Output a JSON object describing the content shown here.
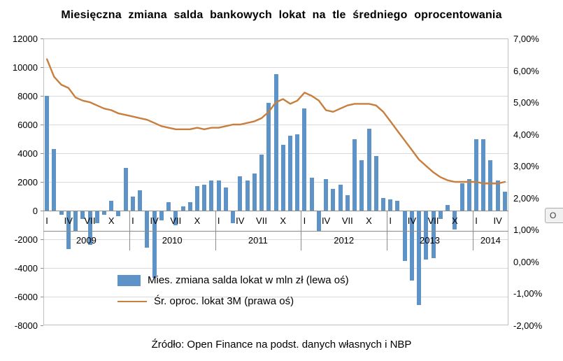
{
  "title": "Miesięczna zmiana salda bankowych lokat na tle średniego oprocentowania",
  "source": "Źródło: Open Finance na podst. danych własnych i NBP",
  "tooltip": "O",
  "legend": {
    "bars": "Mies. zmiana salda lokat w mln zł (lewa oś)",
    "line": "Śr. oproc. lokat 3M (prawa oś)"
  },
  "colors": {
    "bar": "#5d93c6",
    "line": "#c87e3d",
    "grid": "#d9d9d9",
    "axis": "#8c8c8c",
    "border": "#bfbfbf"
  },
  "chart_data": {
    "type": "bar+line combo",
    "title": "Miesięczna zmiana salda bankowych lokat na tle średniego oprocentowania",
    "x_unit": "month",
    "grid": "horizontal",
    "legend_position": "inside-bottom-left",
    "left_axis": {
      "min": -8000,
      "max": 12000,
      "ticks": [
        12000,
        10000,
        8000,
        6000,
        4000,
        2000,
        0,
        -2000,
        -4000,
        -6000,
        -8000
      ],
      "labels": [
        "12000",
        "10000",
        "8000",
        "6000",
        "4000",
        "2000",
        "0",
        "-2000",
        "-4000",
        "-6000",
        "-8000"
      ]
    },
    "right_axis": {
      "min": -2,
      "max": 7,
      "ticks": [
        7,
        6,
        5,
        4,
        3,
        2,
        1,
        0,
        -1,
        -2
      ],
      "labels": [
        "7,00%",
        "6,00%",
        "5,00%",
        "4,00%",
        "3,00%",
        "2,00%",
        "1,00%",
        "0,00%",
        "-1,00%",
        "-2,00%"
      ]
    },
    "month_ticks": [
      {
        "index": 0,
        "label": "I"
      },
      {
        "index": 3,
        "label": "IV"
      },
      {
        "index": 6,
        "label": "VII"
      },
      {
        "index": 9,
        "label": "X"
      },
      {
        "index": 12,
        "label": "I"
      },
      {
        "index": 15,
        "label": "IV"
      },
      {
        "index": 18,
        "label": "VII"
      },
      {
        "index": 21,
        "label": "X"
      },
      {
        "index": 24,
        "label": "I"
      },
      {
        "index": 27,
        "label": "IV"
      },
      {
        "index": 30,
        "label": "VII"
      },
      {
        "index": 33,
        "label": "X"
      },
      {
        "index": 36,
        "label": "I"
      },
      {
        "index": 39,
        "label": "IV"
      },
      {
        "index": 42,
        "label": "VII"
      },
      {
        "index": 45,
        "label": "X"
      },
      {
        "index": 48,
        "label": "I"
      },
      {
        "index": 51,
        "label": "IV"
      },
      {
        "index": 54,
        "label": "VII"
      },
      {
        "index": 57,
        "label": "X"
      },
      {
        "index": 60,
        "label": "I"
      },
      {
        "index": 63,
        "label": "IV"
      }
    ],
    "years": [
      {
        "label": "2009",
        "start": 0,
        "end": 12
      },
      {
        "label": "2010",
        "start": 12,
        "end": 24
      },
      {
        "label": "2011",
        "start": 24,
        "end": 36
      },
      {
        "label": "2012",
        "start": 36,
        "end": 48
      },
      {
        "label": "2013",
        "start": 48,
        "end": 60
      },
      {
        "label": "2014",
        "start": 60,
        "end": 65
      }
    ],
    "series": [
      {
        "name": "Mies. zmiana salda lokat w mln zł (lewa oś)",
        "type": "bar",
        "axis": "left",
        "values": [
          8000,
          4300,
          -300,
          -2700,
          -1400,
          -600,
          -2400,
          -900,
          -300,
          700,
          -400,
          3000,
          1000,
          1400,
          -2600,
          -4700,
          -700,
          600,
          -1000,
          300,
          600,
          1700,
          1800,
          2100,
          2100,
          1600,
          -900,
          2400,
          2100,
          2600,
          3900,
          7500,
          9500,
          4600,
          5200,
          5300,
          7100,
          2300,
          -1400,
          2200,
          1500,
          1800,
          1100,
          5000,
          3500,
          5700,
          3800,
          900,
          800,
          700,
          -3500,
          -4900,
          -6600,
          -3400,
          -3300,
          -600,
          400,
          -1300,
          1900,
          2200,
          5000,
          5000,
          3500,
          2100,
          1300
        ]
      },
      {
        "name": "Śr. oproc. lokat 3M (prawa oś)",
        "type": "line",
        "axis": "right",
        "values": [
          6.35,
          5.8,
          5.55,
          5.45,
          5.15,
          5.05,
          5.0,
          4.9,
          4.8,
          4.75,
          4.65,
          4.6,
          4.55,
          4.5,
          4.45,
          4.35,
          4.25,
          4.2,
          4.15,
          4.15,
          4.15,
          4.2,
          4.15,
          4.2,
          4.2,
          4.25,
          4.3,
          4.3,
          4.35,
          4.4,
          4.5,
          4.7,
          5.0,
          5.1,
          4.95,
          5.05,
          5.3,
          5.2,
          5.05,
          4.75,
          4.7,
          4.8,
          4.9,
          4.95,
          4.95,
          4.95,
          4.9,
          4.7,
          4.4,
          4.1,
          3.8,
          3.5,
          3.2,
          3.0,
          2.8,
          2.65,
          2.55,
          2.5,
          2.5,
          2.5,
          2.5,
          2.45,
          2.45,
          2.45,
          2.5
        ]
      }
    ]
  }
}
